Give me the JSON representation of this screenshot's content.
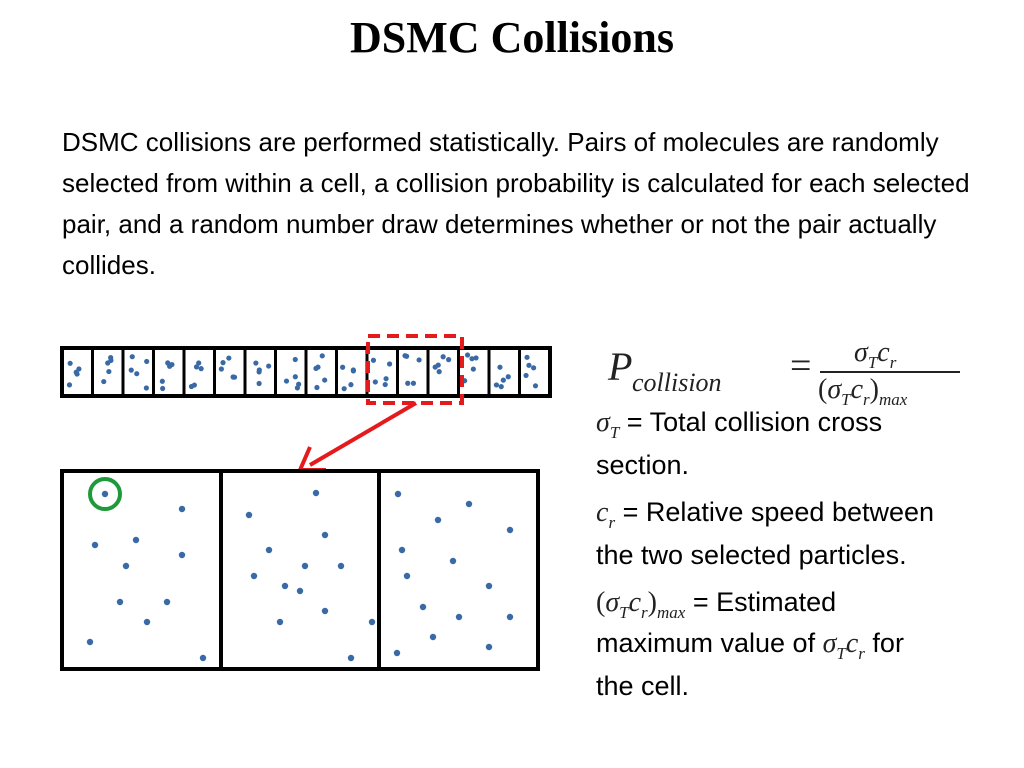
{
  "title": "DSMC Collisions",
  "body": "DSMC collisions are performed statistically. Pairs of molecules are randomly selected from within a cell, a collision probability is calculated for each selected pair, and a random number draw determines whether or not the pair actually collides.",
  "formula": {
    "lhs_symbol": "P",
    "lhs_subscript": "collision",
    "equals": "=",
    "numerator": "σ",
    "numerator_sub1": "T",
    "numerator_c": "c",
    "numerator_sub2": "r",
    "denominator_open": "(",
    "denominator_sigma": "σ",
    "denominator_sub1": "T",
    "denominator_c": "c",
    "denominator_sub2": "r",
    "denominator_close": ")",
    "denominator_sub3": "max"
  },
  "definitions": {
    "sigma_t_text1": " = Total collision cross",
    "sigma_t_text2": "section.",
    "cr_text1": " = Relative speed between",
    "cr_text2": "the two selected particles.",
    "max_text1": " = Estimated",
    "max_text2a": "maximum value of ",
    "max_text2b": " for",
    "max_text3": "the cell."
  },
  "symbols": {
    "sigma": "σ",
    "T": "T",
    "c": "c",
    "r": "r",
    "max": "max",
    "lparen": "(",
    "rparen": ")"
  },
  "colors": {
    "particle": "#3a6aa5",
    "selection_box": "#e41a1c",
    "arrow": "#e41a1c",
    "highlight_circle": "#1f9a3a",
    "cell_border": "#000000"
  }
}
